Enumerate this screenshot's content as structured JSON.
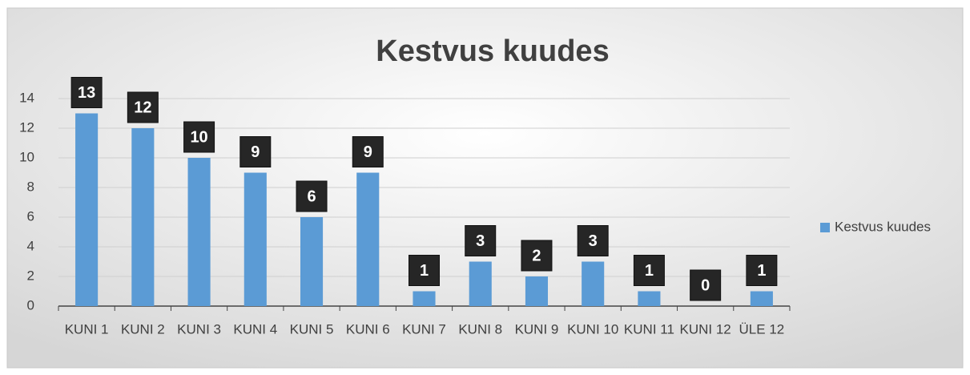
{
  "chart_data": {
    "type": "bar",
    "title": "Kestvus kuudes",
    "categories": [
      "KUNI 1",
      "KUNI 2",
      "KUNI 3",
      "KUNI 4",
      "KUNI 5",
      "KUNI 6",
      "KUNI 7",
      "KUNI 8",
      "KUNI 9",
      "KUNI 10",
      "KUNI 11",
      "KUNI 12",
      "ÜLE 12"
    ],
    "series": [
      {
        "name": "Kestvus kuudes",
        "color": "#5b9bd5",
        "values": [
          13,
          12,
          10,
          9,
          6,
          9,
          1,
          3,
          2,
          3,
          1,
          0,
          1
        ]
      }
    ],
    "ylim": [
      0,
      14
    ],
    "yticks": [
      0,
      2,
      4,
      6,
      8,
      10,
      12,
      14
    ],
    "grid": true,
    "legend": "right"
  }
}
